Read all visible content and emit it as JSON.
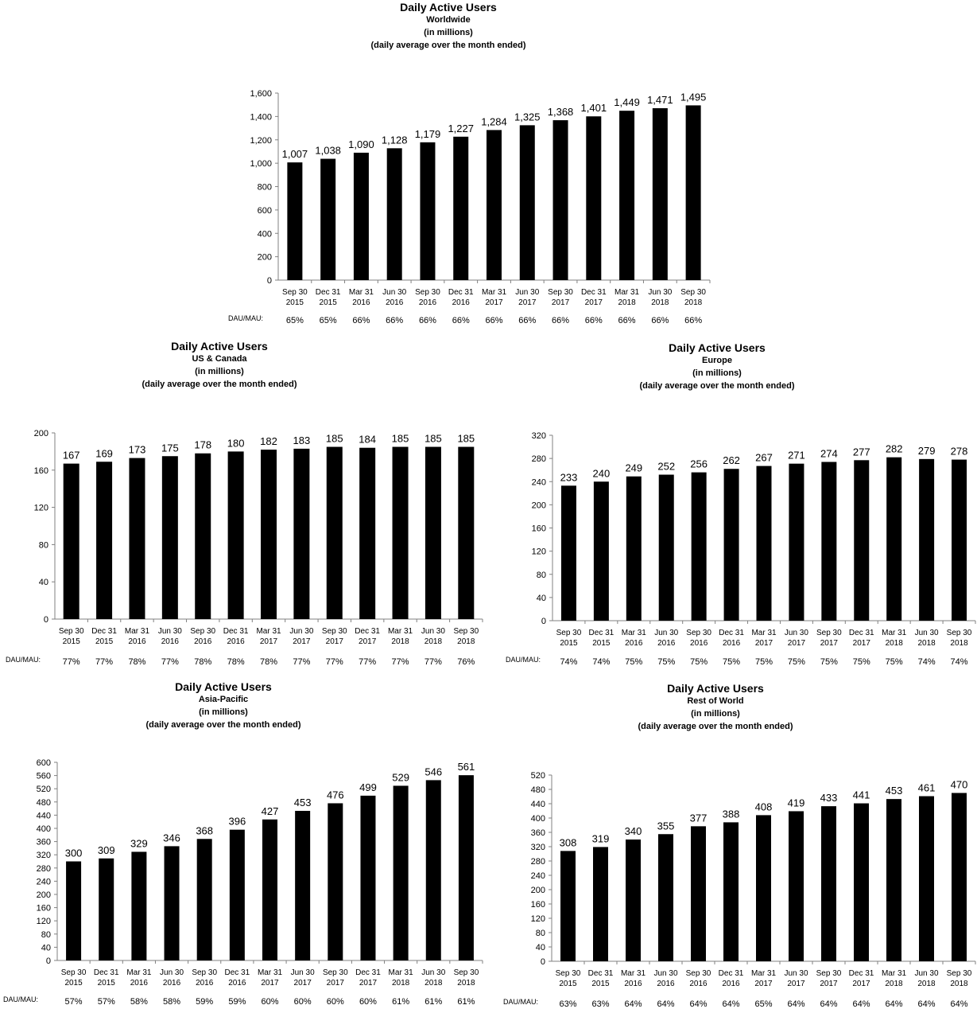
{
  "chart_data": [
    {
      "type": "bar",
      "title": "Daily Active Users",
      "subtitle_lines": [
        "Worldwide",
        "(in millions)",
        "(daily average over the month ended)"
      ],
      "categories": [
        [
          "Sep 30",
          "2015"
        ],
        [
          "Dec 31",
          "2015"
        ],
        [
          "Mar 31",
          "2016"
        ],
        [
          "Jun 30",
          "2016"
        ],
        [
          "Sep 30",
          "2016"
        ],
        [
          "Dec 31",
          "2016"
        ],
        [
          "Mar 31",
          "2017"
        ],
        [
          "Jun 30",
          "2017"
        ],
        [
          "Sep 30",
          "2017"
        ],
        [
          "Dec 31",
          "2017"
        ],
        [
          "Mar 31",
          "2018"
        ],
        [
          "Jun 30",
          "2018"
        ],
        [
          "Sep 30",
          "2018"
        ]
      ],
      "values": [
        1007,
        1038,
        1090,
        1128,
        1179,
        1227,
        1284,
        1325,
        1368,
        1401,
        1449,
        1471,
        1495
      ],
      "value_labels": [
        "1,007",
        "1,038",
        "1,090",
        "1,128",
        "1,179",
        "1,227",
        "1,284",
        "1,325",
        "1,368",
        "1,401",
        "1,449",
        "1,471",
        "1,495"
      ],
      "ylim": [
        0,
        1600
      ],
      "yticks": [
        0,
        200,
        400,
        600,
        800,
        1000,
        1200,
        1400,
        1600
      ],
      "ytick_labels": [
        "0",
        "200",
        "400",
        "600",
        "800",
        "1,000",
        "1,200",
        "1,400",
        "1,600"
      ],
      "ratio_label": "DAU/MAU:",
      "ratios": [
        "65%",
        "65%",
        "66%",
        "66%",
        "66%",
        "66%",
        "66%",
        "66%",
        "66%",
        "66%",
        "66%",
        "66%",
        "66%"
      ],
      "bar_color": "#000000"
    },
    {
      "type": "bar",
      "title": "Daily Active Users",
      "subtitle_lines": [
        "US & Canada",
        "(in millions)",
        "(daily average over the month ended)"
      ],
      "categories": [
        [
          "Sep 30",
          "2015"
        ],
        [
          "Dec 31",
          "2015"
        ],
        [
          "Mar 31",
          "2016"
        ],
        [
          "Jun 30",
          "2016"
        ],
        [
          "Sep 30",
          "2016"
        ],
        [
          "Dec 31",
          "2016"
        ],
        [
          "Mar 31",
          "2017"
        ],
        [
          "Jun 30",
          "2017"
        ],
        [
          "Sep 30",
          "2017"
        ],
        [
          "Dec 31",
          "2017"
        ],
        [
          "Mar 31",
          "2018"
        ],
        [
          "Jun 30",
          "2018"
        ],
        [
          "Sep 30",
          "2018"
        ]
      ],
      "values": [
        167,
        169,
        173,
        175,
        178,
        180,
        182,
        183,
        185,
        184,
        185,
        185,
        185
      ],
      "value_labels": [
        "167",
        "169",
        "173",
        "175",
        "178",
        "180",
        "182",
        "183",
        "185",
        "184",
        "185",
        "185",
        "185"
      ],
      "ylim": [
        0,
        200
      ],
      "yticks": [
        0,
        40,
        80,
        120,
        160,
        200
      ],
      "ytick_labels": [
        "0",
        "40",
        "80",
        "120",
        "160",
        "200"
      ],
      "ratio_label": "DAU/MAU:",
      "ratios": [
        "77%",
        "77%",
        "78%",
        "77%",
        "78%",
        "78%",
        "78%",
        "77%",
        "77%",
        "77%",
        "77%",
        "77%",
        "76%"
      ],
      "bar_color": "#000000"
    },
    {
      "type": "bar",
      "title": "Daily Active Users",
      "subtitle_lines": [
        "Europe",
        "(in millions)",
        "(daily average over the month ended)"
      ],
      "categories": [
        [
          "Sep 30",
          "2015"
        ],
        [
          "Dec 31",
          "2015"
        ],
        [
          "Mar 31",
          "2016"
        ],
        [
          "Jun 30",
          "2016"
        ],
        [
          "Sep 30",
          "2016"
        ],
        [
          "Dec 31",
          "2016"
        ],
        [
          "Mar 31",
          "2017"
        ],
        [
          "Jun 30",
          "2017"
        ],
        [
          "Sep 30",
          "2017"
        ],
        [
          "Dec 31",
          "2017"
        ],
        [
          "Mar 31",
          "2018"
        ],
        [
          "Jun 30",
          "2018"
        ],
        [
          "Sep 30",
          "2018"
        ]
      ],
      "values": [
        233,
        240,
        249,
        252,
        256,
        262,
        267,
        271,
        274,
        277,
        282,
        279,
        278
      ],
      "value_labels": [
        "233",
        "240",
        "249",
        "252",
        "256",
        "262",
        "267",
        "271",
        "274",
        "277",
        "282",
        "279",
        "278"
      ],
      "ylim": [
        0,
        320
      ],
      "yticks": [
        0,
        40,
        80,
        120,
        160,
        200,
        240,
        280,
        320
      ],
      "ytick_labels": [
        "0",
        "40",
        "80",
        "120",
        "160",
        "200",
        "240",
        "280",
        "320"
      ],
      "ratio_label": "DAU/MAU:",
      "ratios": [
        "74%",
        "74%",
        "75%",
        "75%",
        "75%",
        "75%",
        "75%",
        "75%",
        "75%",
        "75%",
        "75%",
        "74%",
        "74%"
      ],
      "bar_color": "#000000"
    },
    {
      "type": "bar",
      "title": "Daily Active Users",
      "subtitle_lines": [
        "Asia-Pacific",
        "(in millions)",
        "(daily average over the month ended)"
      ],
      "categories": [
        [
          "Sep 30",
          "2015"
        ],
        [
          "Dec 31",
          "2015"
        ],
        [
          "Mar 31",
          "2016"
        ],
        [
          "Jun 30",
          "2016"
        ],
        [
          "Sep 30",
          "2016"
        ],
        [
          "Dec 31",
          "2016"
        ],
        [
          "Mar 31",
          "2017"
        ],
        [
          "Jun 30",
          "2017"
        ],
        [
          "Sep 30",
          "2017"
        ],
        [
          "Dec 31",
          "2017"
        ],
        [
          "Mar 31",
          "2018"
        ],
        [
          "Jun 30",
          "2018"
        ],
        [
          "Sep 30",
          "2018"
        ]
      ],
      "values": [
        300,
        309,
        329,
        346,
        368,
        396,
        427,
        453,
        476,
        499,
        529,
        546,
        561
      ],
      "value_labels": [
        "300",
        "309",
        "329",
        "346",
        "368",
        "396",
        "427",
        "453",
        "476",
        "499",
        "529",
        "546",
        "561"
      ],
      "ylim": [
        0,
        600
      ],
      "yticks": [
        0,
        40,
        80,
        120,
        160,
        200,
        240,
        280,
        320,
        360,
        400,
        440,
        480,
        520,
        560,
        600
      ],
      "ytick_labels": [
        "0",
        "40",
        "80",
        "120",
        "160",
        "200",
        "240",
        "280",
        "320",
        "360",
        "400",
        "440",
        "480",
        "520",
        "560",
        "600"
      ],
      "ratio_label": "DAU/MAU:",
      "ratios": [
        "57%",
        "57%",
        "58%",
        "58%",
        "59%",
        "59%",
        "60%",
        "60%",
        "60%",
        "60%",
        "61%",
        "61%",
        "61%"
      ],
      "bar_color": "#000000"
    },
    {
      "type": "bar",
      "title": "Daily Active Users",
      "subtitle_lines": [
        "Rest of World",
        "(in millions)",
        "(daily average over the month ended)"
      ],
      "categories": [
        [
          "Sep 30",
          "2015"
        ],
        [
          "Dec 31",
          "2015"
        ],
        [
          "Mar 31",
          "2016"
        ],
        [
          "Jun 30",
          "2016"
        ],
        [
          "Sep 30",
          "2016"
        ],
        [
          "Dec 31",
          "2016"
        ],
        [
          "Mar 31",
          "2017"
        ],
        [
          "Jun 30",
          "2017"
        ],
        [
          "Sep 30",
          "2017"
        ],
        [
          "Dec 31",
          "2017"
        ],
        [
          "Mar 31",
          "2018"
        ],
        [
          "Jun 30",
          "2018"
        ],
        [
          "Sep 30",
          "2018"
        ]
      ],
      "values": [
        308,
        319,
        340,
        355,
        377,
        388,
        408,
        419,
        433,
        441,
        453,
        461,
        470
      ],
      "value_labels": [
        "308",
        "319",
        "340",
        "355",
        "377",
        "388",
        "408",
        "419",
        "433",
        "441",
        "453",
        "461",
        "470"
      ],
      "ylim": [
        0,
        520
      ],
      "yticks": [
        0,
        40,
        80,
        120,
        160,
        200,
        240,
        280,
        320,
        360,
        400,
        440,
        480,
        520
      ],
      "ytick_labels": [
        "0",
        "40",
        "80",
        "120",
        "160",
        "200",
        "240",
        "280",
        "320",
        "360",
        "400",
        "440",
        "480",
        "520"
      ],
      "ratio_label": "DAU/MAU:",
      "ratios": [
        "63%",
        "63%",
        "64%",
        "64%",
        "64%",
        "64%",
        "65%",
        "64%",
        "64%",
        "64%",
        "64%",
        "64%",
        "64%"
      ],
      "bar_color": "#000000"
    }
  ]
}
